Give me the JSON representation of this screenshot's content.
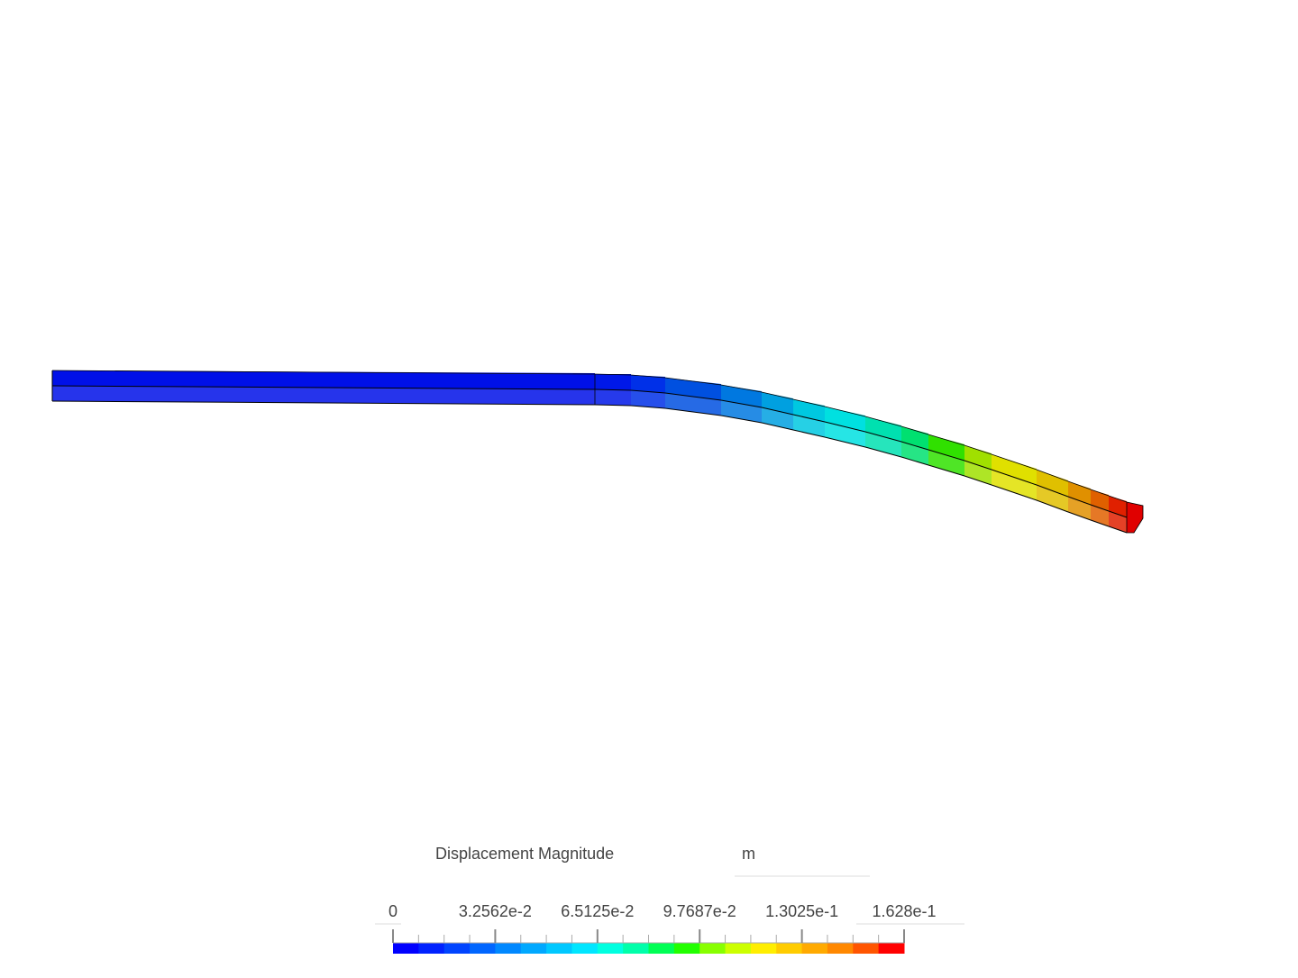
{
  "legend": {
    "title": "Displacement Magnitude",
    "unit": "m",
    "range": [
      0,
      0.1628
    ],
    "ticks": [
      {
        "value": 0,
        "label": "0"
      },
      {
        "value": 0.032562,
        "label": "3.2562e-2"
      },
      {
        "value": 0.065125,
        "label": "6.5125e-2"
      },
      {
        "value": 0.097687,
        "label": "9.7687e-2"
      },
      {
        "value": 0.13025,
        "label": "1.3025e-1"
      },
      {
        "value": 0.1628,
        "label": "1.628e-1"
      }
    ],
    "colors": [
      "#0000ff",
      "#0022ff",
      "#0044ff",
      "#0066ff",
      "#0088ff",
      "#00a8ff",
      "#00c8ff",
      "#00e6ff",
      "#00ffe0",
      "#00ffaa",
      "#00ff55",
      "#22ff00",
      "#88ff00",
      "#ccff00",
      "#ffee00",
      "#ffcc00",
      "#ffaa00",
      "#ff8800",
      "#ff5500",
      "#ff0000"
    ]
  }
}
